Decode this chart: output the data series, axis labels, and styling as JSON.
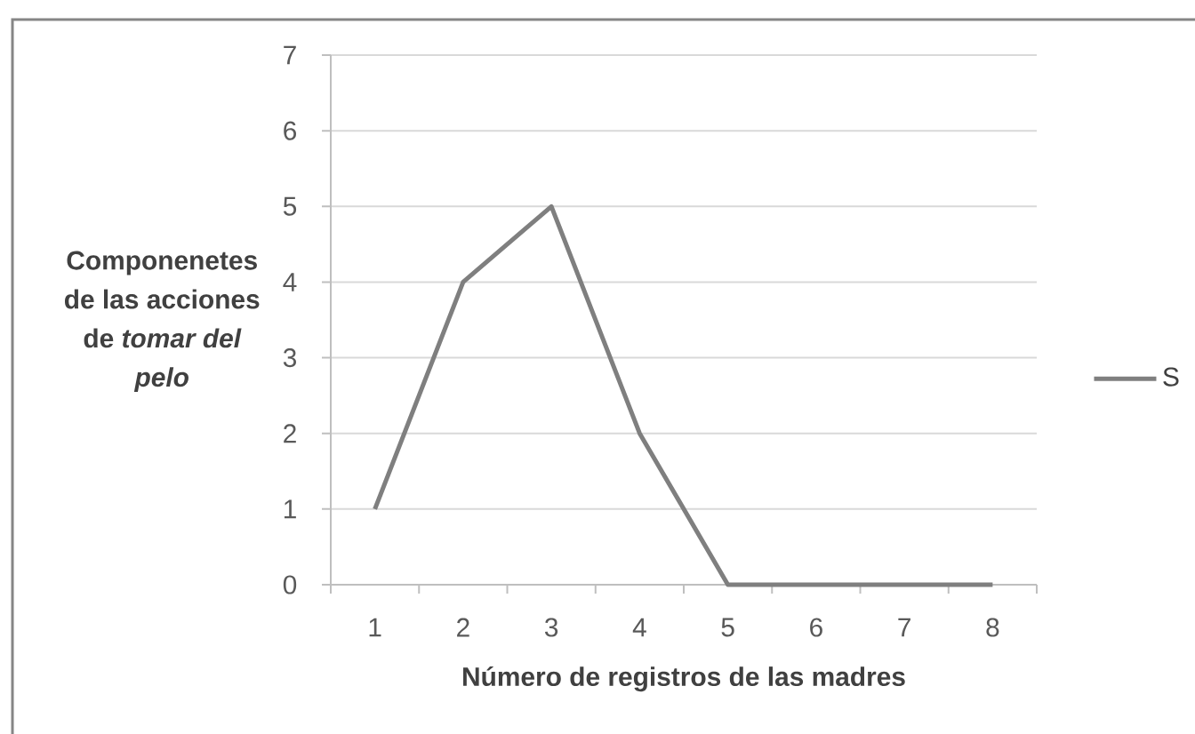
{
  "chart_data": {
    "type": "line",
    "categories": [
      "1",
      "2",
      "3",
      "4",
      "5",
      "6",
      "7",
      "8"
    ],
    "series": [
      {
        "name": "S",
        "color": "#7f7f7f",
        "values": [
          1,
          4,
          5,
          2,
          0,
          0,
          0,
          0
        ]
      }
    ],
    "xlabel": "Número de registros de las madres",
    "ylabel": "Componenetes de las acciones de *tomar del pelo*",
    "ylim": [
      0,
      7
    ],
    "yticks": [
      0,
      1,
      2,
      3,
      4,
      5,
      6,
      7
    ],
    "grid": "y",
    "legend": "right",
    "line_style": "solid"
  }
}
